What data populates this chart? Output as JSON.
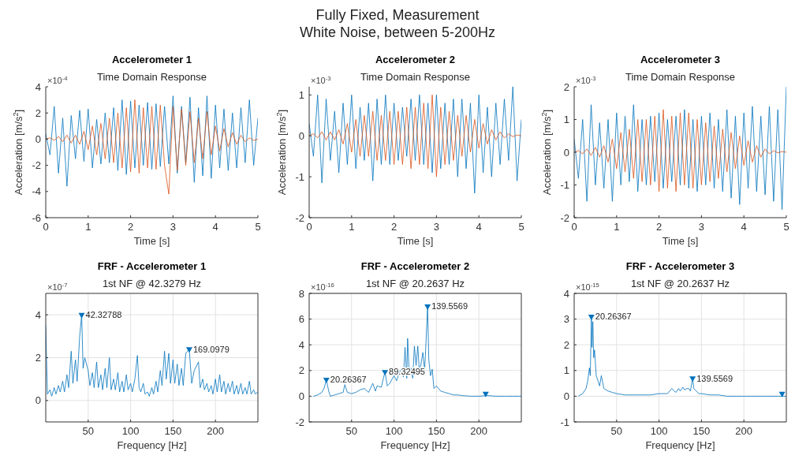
{
  "chart_data": [
    {
      "type": "line",
      "title": "Accelerometer 1",
      "subtitle": "Time Domain Response",
      "xlabel": "Time [s]",
      "ylabel": "Acceleration [m/s$^{2}$]",
      "annotations": [
        "Fully Fixed, Measurement",
        "White Noise, between 5-200Hz",
        "×10$^{-4}$"
      ],
      "xlim": [
        0,
        5
      ],
      "xticks": [
        0,
        1,
        2,
        3,
        4,
        5
      ],
      "ylim": [
        -6,
        4
      ],
      "yticks": [
        -6,
        -4,
        -2,
        0,
        2,
        4
      ],
      "grid": false,
      "x": [
        0,
        0.1,
        0.2,
        0.3,
        0.4,
        0.5,
        0.6,
        0.7,
        0.8,
        0.9,
        1,
        1.1,
        1.2,
        1.3,
        1.4,
        1.5,
        1.6,
        1.7,
        1.8,
        1.9,
        2,
        2.1,
        2.2,
        2.3,
        2.4,
        2.5,
        2.6,
        2.7,
        2.8,
        2.9,
        3,
        3.1,
        3.2,
        3.3,
        3.4,
        3.5,
        3.6,
        3.7,
        3.8,
        3.9,
        4,
        4.1,
        4.2,
        4.3,
        4.4,
        4.5,
        4.6,
        4.7,
        4.8,
        4.9,
        5
      ],
      "series": [
        {
          "color": "#0072bd",
          "values": [
            0.4,
            -1.2,
            2.5,
            -2.6,
            1.6,
            -3.6,
            1.8,
            -1.5,
            2.2,
            -1.7,
            2.3,
            -2.2,
            1.5,
            -1.9,
            2.0,
            -1.8,
            2.4,
            -2.4,
            3.0,
            -2.7,
            2.9,
            -2.2,
            2.6,
            -2.0,
            2.8,
            -2.3,
            2.7,
            -2.1,
            2.5,
            -1.9,
            3.3,
            -2.6,
            2.5,
            -1.8,
            3.2,
            -3.3,
            2.4,
            -2.8,
            3.3,
            -3.0,
            2.6,
            -2.2,
            2.3,
            -2.4,
            2.0,
            -2.2,
            2.4,
            -1.8,
            3.0,
            -2.0,
            1.6
          ]
        },
        {
          "color": "#d95319",
          "values": [
            0,
            0.1,
            -0.1,
            0.2,
            -0.2,
            0.3,
            -0.3,
            0.3,
            -0.4,
            0.6,
            -0.8,
            1.0,
            -1.2,
            1.2,
            -1.5,
            1.6,
            -1.8,
            2.0,
            -2.2,
            2.4,
            -2.5,
            3.0,
            -2.6,
            2.4,
            -2.2,
            2.5,
            -2.3,
            2.6,
            -2.0,
            -4.2,
            2.5,
            -2.4,
            2.3,
            -2.0,
            2.1,
            -1.8,
            1.6,
            -1.5,
            2.1,
            -1.2,
            1.0,
            -0.9,
            0.8,
            -0.6,
            0.5,
            -0.4,
            0.3,
            -0.2,
            0.1,
            -0.1,
            0
          ]
        }
      ]
    },
    {
      "type": "line",
      "title": "Accelerometer 2",
      "subtitle": "Time Domain Response",
      "xlabel": "Time [s]",
      "ylabel": "Acceleration [m/s$^{2}$]",
      "annotations": [
        "×10$^{-3}$"
      ],
      "xlim": [
        0,
        5
      ],
      "xticks": [
        0,
        1,
        2,
        3,
        4,
        5
      ],
      "ylim": [
        -2,
        1.2
      ],
      "yticks": [
        -2,
        -1,
        0,
        1
      ],
      "grid": false,
      "x": [
        0,
        0.1,
        0.2,
        0.3,
        0.4,
        0.5,
        0.6,
        0.7,
        0.8,
        0.9,
        1,
        1.1,
        1.2,
        1.3,
        1.4,
        1.5,
        1.6,
        1.7,
        1.8,
        1.9,
        2,
        2.1,
        2.2,
        2.3,
        2.4,
        2.5,
        2.6,
        2.7,
        2.8,
        2.9,
        3,
        3.1,
        3.2,
        3.3,
        3.4,
        3.5,
        3.6,
        3.7,
        3.8,
        3.9,
        4,
        4.1,
        4.2,
        4.3,
        4.4,
        4.5,
        4.6,
        4.7,
        4.8,
        4.9,
        5
      ],
      "series": [
        {
          "color": "#0072bd",
          "values": [
            0.3,
            -0.5,
            1.0,
            -1.15,
            0.9,
            -0.6,
            0.6,
            -0.9,
            0.8,
            -0.7,
            1.0,
            -0.8,
            0.7,
            -0.6,
            0.8,
            -1.1,
            0.9,
            -0.7,
            1.0,
            -0.7,
            0.8,
            -0.6,
            0.7,
            -0.5,
            0.9,
            -0.6,
            1.0,
            -0.7,
            0.8,
            -0.9,
            1.0,
            -0.8,
            0.8,
            -0.7,
            0.9,
            -1.0,
            0.9,
            -0.8,
            0.8,
            -1.4,
            1.0,
            -0.9,
            0.7,
            -1.0,
            0.8,
            -0.7,
            0.9,
            -0.6,
            1.2,
            -1.1,
            0.4
          ]
        },
        {
          "color": "#d95319",
          "values": [
            0,
            0.05,
            -0.05,
            0.1,
            -0.1,
            0.1,
            -0.1,
            0.15,
            -0.2,
            0.3,
            -0.4,
            0.4,
            -0.5,
            0.5,
            -0.5,
            0.6,
            -0.6,
            0.5,
            -0.6,
            0.6,
            -0.7,
            0.6,
            -0.7,
            0.7,
            -0.8,
            0.7,
            -0.7,
            0.8,
            -0.8,
            1.0,
            -1.0,
            0.7,
            -0.7,
            0.6,
            -0.6,
            0.5,
            -0.5,
            0.5,
            -0.4,
            0.4,
            -0.3,
            0.3,
            -0.2,
            0.15,
            -0.1,
            0.1,
            -0.05,
            0.05,
            -0.02,
            0.02,
            0
          ]
        }
      ]
    },
    {
      "type": "line",
      "title": "Accelerometer 3",
      "subtitle": "Time Domain Response",
      "xlabel": "Time [s]",
      "ylabel": "Acceleration [m/s$^{2}$]",
      "annotations": [
        "×10$^{-3}$"
      ],
      "xlim": [
        0,
        5
      ],
      "xticks": [
        0,
        1,
        2,
        3,
        4,
        5
      ],
      "ylim": [
        -2,
        2
      ],
      "yticks": [
        -2,
        -1,
        0,
        1,
        2
      ],
      "grid": false,
      "x": [
        0,
        0.1,
        0.2,
        0.3,
        0.4,
        0.5,
        0.6,
        0.7,
        0.8,
        0.9,
        1,
        1.1,
        1.2,
        1.3,
        1.4,
        1.5,
        1.6,
        1.7,
        1.8,
        1.9,
        2,
        2.1,
        2.2,
        2.3,
        2.4,
        2.5,
        2.6,
        2.7,
        2.8,
        2.9,
        3,
        3.1,
        3.2,
        3.3,
        3.4,
        3.5,
        3.6,
        3.7,
        3.8,
        3.9,
        4,
        4.1,
        4.2,
        4.3,
        4.4,
        4.5,
        4.6,
        4.7,
        4.8,
        4.9,
        5
      ],
      "series": [
        {
          "color": "#0072bd",
          "values": [
            0.4,
            -0.8,
            1.0,
            -1.5,
            1.45,
            -1.0,
            0.9,
            -1.1,
            1.0,
            -1.5,
            1.2,
            -1.0,
            1.1,
            -0.9,
            1.45,
            -1.2,
            1.0,
            -1.0,
            1.1,
            -0.9,
            1.2,
            -1.1,
            1.0,
            -0.9,
            1.1,
            -1.0,
            1.3,
            -1.1,
            1.0,
            -1.2,
            1.1,
            -1.0,
            1.2,
            -1.1,
            1.0,
            -1.2,
            1.3,
            -1.4,
            1.1,
            -1.6,
            1.2,
            -1.1,
            1.4,
            -1.2,
            1.1,
            -1.3,
            1.4,
            -1.5,
            1.3,
            -1.75,
            2.0
          ]
        },
        {
          "color": "#d95319",
          "values": [
            0,
            0.05,
            -0.05,
            0.1,
            -0.1,
            0.15,
            -0.15,
            0.2,
            -0.3,
            0.4,
            -0.5,
            0.6,
            -0.6,
            0.7,
            -0.8,
            1.0,
            -0.9,
            1.0,
            -1.0,
            1.1,
            -1.2,
            1.3,
            -1.1,
            1.1,
            -1.2,
            1.2,
            -1.0,
            1.2,
            -1.1,
            1.0,
            -1.0,
            0.9,
            -0.9,
            0.8,
            -0.8,
            0.7,
            -0.6,
            0.6,
            -0.5,
            0.5,
            -0.4,
            0.35,
            -0.3,
            0.2,
            -0.15,
            0.1,
            -0.05,
            0.05,
            -0.02,
            0.02,
            0
          ]
        }
      ]
    },
    {
      "type": "line",
      "title": "FRF - Accelerometer 1",
      "subtitle": "1st NF @ 42.3279 Hz",
      "xlabel": "Frequency [Hz]",
      "annotations": [
        "×10$^{-7}$",
        {
          "text": "42.32788",
          "x": 42.32788,
          "y": 4.0
        },
        {
          "text": "169.0979",
          "x": 169.0979,
          "y": 2.4
        }
      ],
      "xlim": [
        0,
        250
      ],
      "xticks": [
        50,
        100,
        150,
        200
      ],
      "ylim": [
        -1,
        5
      ],
      "yticks": [
        0,
        2,
        4
      ],
      "grid": true,
      "series": [
        {
          "color": "#0072bd",
          "x": [
            0,
            2,
            5,
            7,
            10,
            12,
            15,
            17,
            20,
            22,
            25,
            27,
            30,
            32,
            35,
            37,
            40,
            42.32788,
            44,
            46,
            50,
            52,
            55,
            57,
            60,
            62,
            65,
            67,
            70,
            72,
            75,
            77,
            80,
            82,
            85,
            87,
            90,
            92,
            95,
            97,
            100,
            102,
            105,
            108,
            110,
            112,
            115,
            117,
            120,
            122,
            125,
            127,
            130,
            132,
            135,
            137,
            140,
            142,
            145,
            147,
            150,
            152,
            155,
            157,
            160,
            162,
            165,
            169.0979,
            172,
            175,
            180,
            182,
            185,
            187,
            190,
            192,
            195,
            197,
            200,
            202,
            205,
            207,
            210,
            212,
            215,
            217,
            220,
            222,
            225,
            227,
            230,
            232,
            235,
            237,
            240,
            242,
            245,
            247,
            250
          ],
          "values": [
            3.5,
            0.3,
            0.5,
            0.2,
            0.6,
            0.3,
            0.7,
            0.4,
            0.9,
            0.4,
            1.2,
            0.6,
            2.3,
            0.8,
            1.9,
            0.9,
            3.0,
            4.0,
            1.5,
            2.0,
            1.4,
            0.7,
            1.3,
            0.6,
            1.8,
            0.6,
            1.2,
            0.5,
            1.5,
            0.6,
            2.0,
            0.5,
            1.0,
            0.5,
            1.3,
            0.4,
            0.9,
            0.4,
            1.2,
            0.5,
            0.8,
            0.4,
            1.0,
            2.1,
            0.6,
            0.4,
            0.8,
            0.3,
            0.4,
            0.2,
            0.6,
            0.3,
            0.9,
            0.4,
            1.4,
            0.7,
            2.3,
            1.0,
            2.2,
            0.8,
            1.9,
            0.8,
            1.7,
            0.7,
            1.5,
            0.7,
            2.2,
            2.4,
            0.8,
            1.4,
            1.8,
            0.6,
            1.0,
            0.5,
            0.8,
            0.4,
            0.7,
            0.3,
            1.0,
            0.4,
            1.2,
            0.4,
            0.9,
            0.3,
            0.8,
            0.4,
            0.9,
            0.3,
            0.7,
            0.3,
            0.8,
            0.3,
            0.6,
            0.3,
            0.9,
            0.3,
            0.5,
            0.3,
            0.4
          ]
        },
        {
          "type": "scatter",
          "marker": "triangle",
          "color": "#0072bd",
          "x": [
            42.32788,
            169.0979
          ],
          "values": [
            4.0,
            2.4
          ]
        }
      ]
    },
    {
      "type": "line",
      "title": "FRF - Accelerometer 2",
      "subtitle": "1st NF @ 20.2637 Hz",
      "xlabel": "Frequency [Hz]",
      "annotations": [
        "×10$^{-16}$",
        {
          "text": "20.26367",
          "x": 20.26367,
          "y": 1.3
        },
        {
          "text": "89.32495",
          "x": 89.32495,
          "y": 1.9
        },
        {
          "text": "139.5569",
          "x": 139.5569,
          "y": 7.0
        }
      ],
      "xlim": [
        0,
        250
      ],
      "xticks": [
        50,
        100,
        150,
        200
      ],
      "ylim": [
        -2,
        8
      ],
      "yticks": [
        -2,
        0,
        2,
        4,
        6,
        8
      ],
      "grid": true,
      "series": [
        {
          "color": "#0072bd",
          "x": [
            5,
            10,
            15,
            18,
            20.26367,
            23,
            25,
            30,
            35,
            40,
            42,
            45,
            50,
            55,
            60,
            65,
            70,
            75,
            78,
            80,
            85,
            89.32495,
            92,
            95,
            100,
            103,
            106,
            109,
            111,
            113,
            115,
            116,
            118,
            120,
            122,
            124,
            126,
            128,
            130,
            132,
            134,
            136,
            137,
            139.5569,
            141,
            143,
            145,
            147,
            150,
            155,
            160,
            165,
            170,
            175,
            180,
            190,
            200,
            210,
            220,
            230,
            240,
            250
          ],
          "values": [
            0,
            0.1,
            0.3,
            0.7,
            1.3,
            0.4,
            0,
            0.1,
            0.2,
            0.3,
            0.9,
            0.3,
            0.2,
            0.3,
            0.5,
            0.6,
            0.3,
            1.0,
            0.4,
            0.8,
            0.7,
            1.9,
            0.8,
            1.0,
            1.6,
            1.2,
            1.8,
            2.2,
            1.5,
            3.8,
            1.4,
            4.5,
            1.7,
            2.2,
            1.4,
            3.9,
            2.4,
            3.9,
            1.8,
            2.6,
            3.4,
            2.0,
            3.2,
            7.0,
            2.8,
            1.6,
            2.1,
            0.6,
            0.8,
            0.4,
            0.3,
            0.2,
            0.1,
            0.1,
            0.05,
            0,
            0,
            0.05,
            0,
            0,
            0,
            0
          ]
        },
        {
          "type": "scatter",
          "marker": "triangle",
          "color": "#0072bd",
          "x": [
            20.26367,
            89.32495,
            139.5569,
            208
          ],
          "values": [
            1.3,
            1.9,
            7.0,
            0.2
          ]
        }
      ]
    },
    {
      "type": "line",
      "title": "FRF - Accelerometer 3",
      "subtitle": "1st NF @ 20.2637 Hz",
      "xlabel": "Frequency [Hz]",
      "annotations": [
        "×10$^{-15}$",
        {
          "text": "20.26367",
          "x": 20.26367,
          "y": 3.1
        },
        {
          "text": "139.5569",
          "x": 139.5569,
          "y": 0.7
        }
      ],
      "xlim": [
        0,
        250
      ],
      "xticks": [
        50,
        100,
        150,
        200
      ],
      "ylim": [
        -1,
        4
      ],
      "yticks": [
        -1,
        0,
        1,
        2,
        3,
        4
      ],
      "grid": true,
      "series": [
        {
          "color": "#0072bd",
          "x": [
            5,
            10,
            14,
            16,
            18,
            19,
            20.26367,
            21,
            22,
            23,
            24,
            26,
            28,
            30,
            32,
            35,
            40,
            45,
            50,
            60,
            70,
            80,
            90,
            100,
            110,
            115,
            118,
            120,
            123,
            125,
            128,
            130,
            133,
            135,
            137,
            139.5569,
            141,
            144,
            147,
            150,
            160,
            170,
            180,
            200,
            220,
            240,
            250
          ],
          "values": [
            0,
            0.1,
            0.3,
            0.6,
            1.1,
            0.8,
            3.1,
            1.9,
            2.9,
            1.5,
            1.8,
            0.8,
            0.6,
            0.4,
            0.8,
            0.3,
            0.2,
            0.15,
            0.1,
            0.05,
            0.05,
            0.05,
            0.05,
            0.1,
            0.1,
            0.3,
            0.2,
            0.15,
            0.3,
            0.2,
            0.35,
            0.25,
            0.3,
            0.3,
            0.2,
            0.7,
            0.3,
            0.2,
            0.1,
            0.1,
            0.05,
            0.05,
            0,
            0,
            0,
            0,
            0
          ]
        },
        {
          "type": "scatter",
          "marker": "triangle",
          "color": "#0072bd",
          "x": [
            20.26367,
            139.5569,
            245
          ],
          "values": [
            3.1,
            0.7,
            0.1
          ]
        }
      ]
    }
  ]
}
